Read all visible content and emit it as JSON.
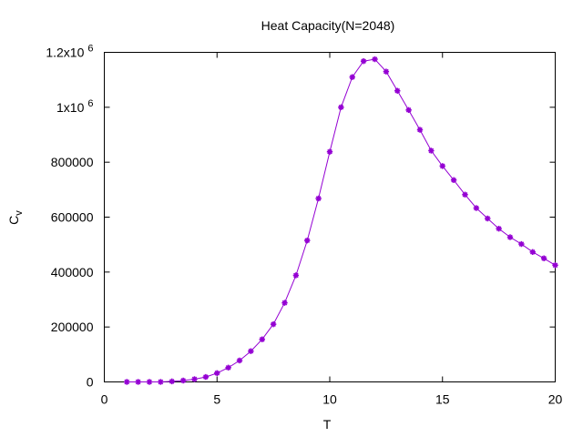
{
  "chart_data": {
    "type": "line",
    "title": "Heat Capacity(N=2048)",
    "xlabel": "T",
    "ylabel": {
      "main": "C",
      "sub": "v"
    },
    "xlim": [
      0,
      20
    ],
    "ylim": [
      0,
      1200000
    ],
    "x_ticks": [
      {
        "value": 0,
        "label": "0"
      },
      {
        "value": 5,
        "label": "5"
      },
      {
        "value": 10,
        "label": "10"
      },
      {
        "value": 15,
        "label": "15"
      },
      {
        "value": 20,
        "label": "20"
      }
    ],
    "y_ticks": [
      {
        "value": 0,
        "label": "0"
      },
      {
        "value": 200000,
        "label": "200000"
      },
      {
        "value": 400000,
        "label": "400000"
      },
      {
        "value": 600000,
        "label": "600000"
      },
      {
        "value": 800000,
        "label": "800000"
      },
      {
        "value": 1000000,
        "label": "1x10",
        "exp": "6"
      },
      {
        "value": 1200000,
        "label": "1.2x10",
        "exp": "6"
      }
    ],
    "grid": false,
    "marker": "asterisk",
    "color": "#9400d3",
    "series": [
      {
        "x": [
          1,
          1.5,
          2,
          2.5,
          3,
          3.5,
          4,
          4.5,
          5,
          5.5,
          6,
          6.5,
          7,
          7.5,
          8,
          8.5,
          9,
          9.5,
          10,
          10.5,
          11,
          11.5,
          12,
          12.5,
          13,
          13.5,
          14,
          14.5,
          15,
          15.5,
          16,
          16.5,
          17,
          17.5,
          18,
          18.5,
          19,
          19.5,
          20
        ],
        "y": [
          0,
          0,
          0,
          0,
          2000,
          5000,
          10000,
          18000,
          32000,
          52000,
          78000,
          112000,
          155000,
          210000,
          288000,
          388000,
          515000,
          668000,
          838000,
          1000000,
          1110000,
          1168000,
          1175000,
          1130000,
          1060000,
          990000,
          918000,
          842000,
          786000,
          735000,
          682000,
          633000,
          595000,
          558000,
          527000,
          502000,
          473000,
          450000,
          425000
        ]
      }
    ]
  }
}
